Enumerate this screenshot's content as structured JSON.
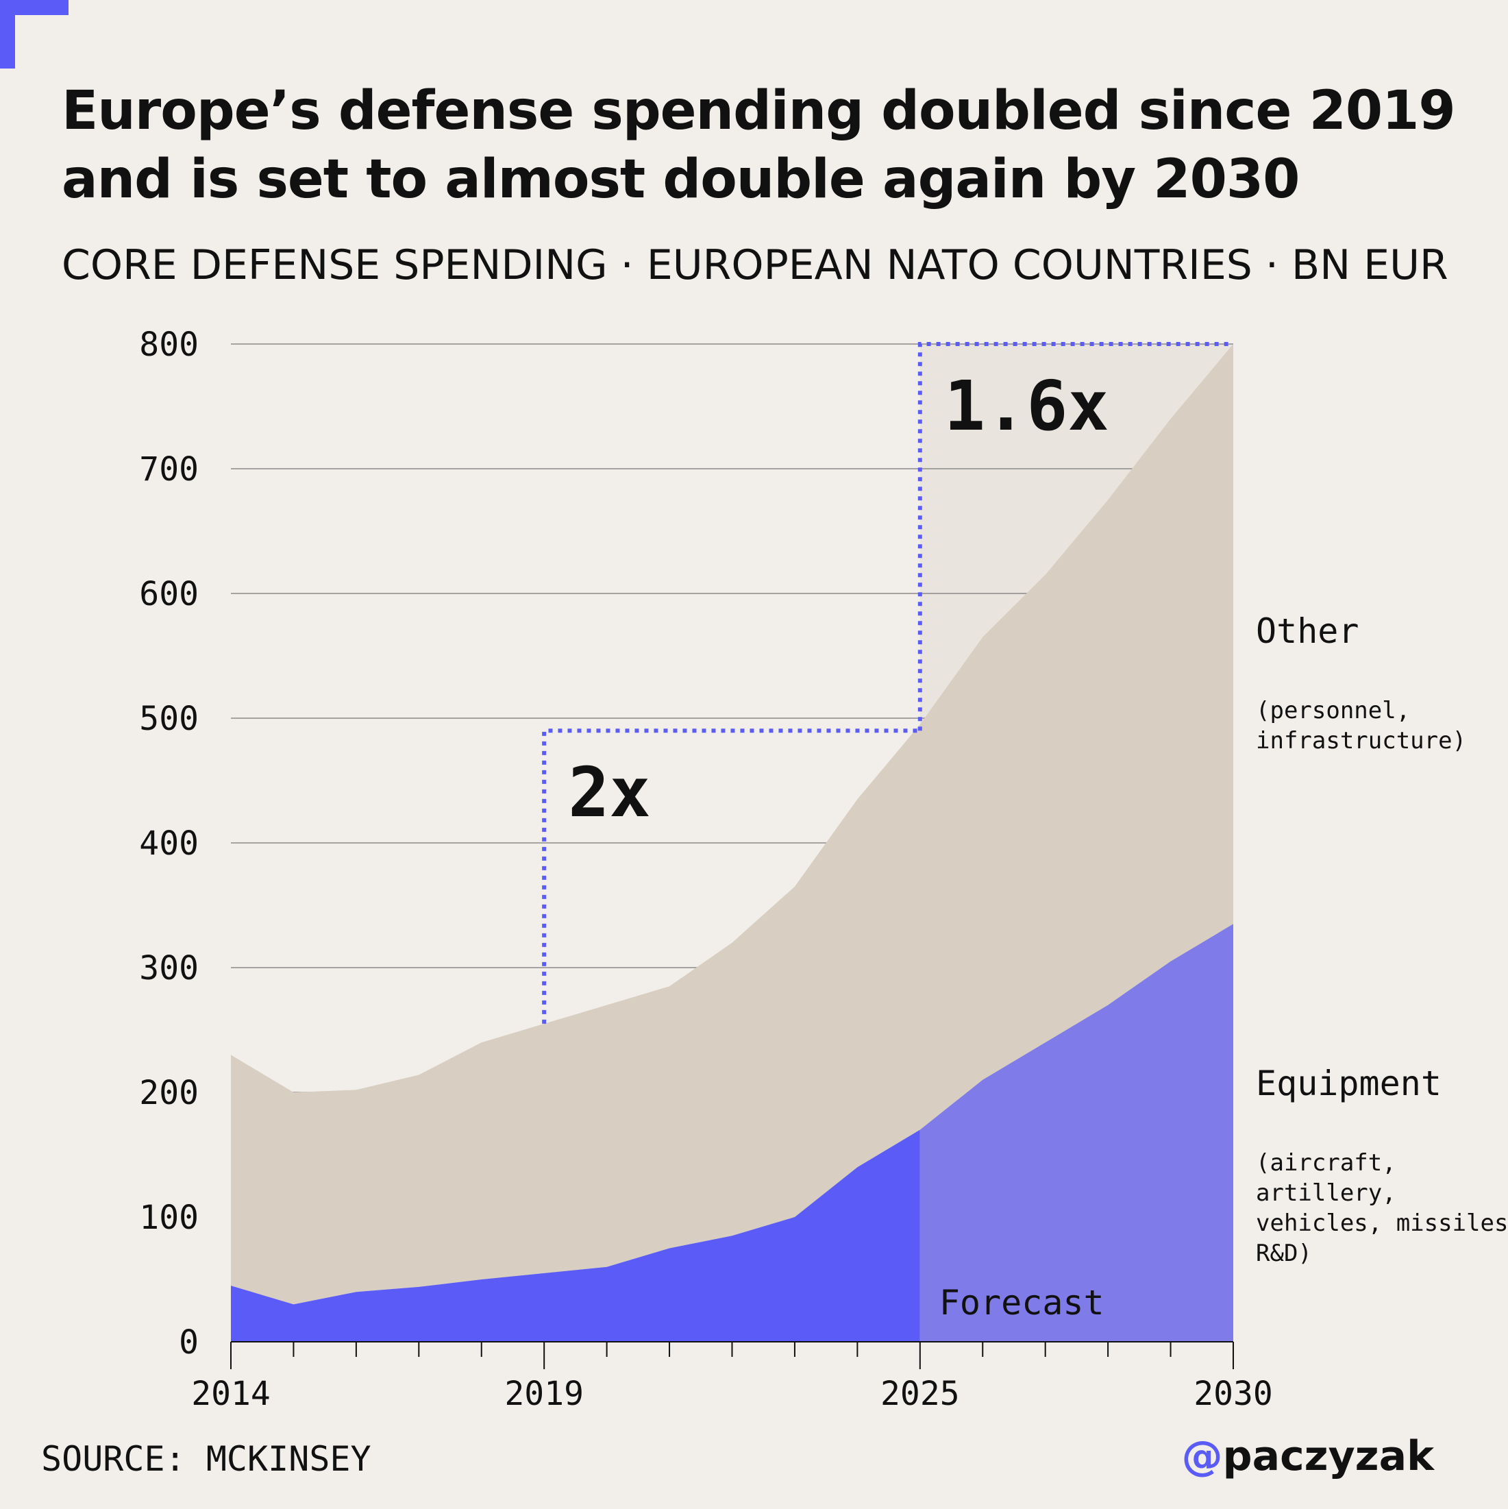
{
  "colors": {
    "background": "#f2efea",
    "accent": "#5b5bf7",
    "equipment": "#5b5bf7",
    "equipment_forecast": "#7f7be8",
    "other": "#d8cec2",
    "forecast_bg": "#e9e4de",
    "grid": "#8a8a8a",
    "text": "#111111"
  },
  "header": {
    "title": "Europe’s defense spending doubled since 2019 and is set to almost double again by 2030",
    "subtitle": "CORE DEFENSE SPENDING · EUROPEAN NATO COUNTRIES · BN EUR"
  },
  "footer": {
    "source": "SOURCE: MCKINSEY",
    "handle_at": "@",
    "handle_name": "paczyzak"
  },
  "chart_data": {
    "type": "area",
    "stacked": true,
    "x": [
      2014,
      2015,
      2016,
      2017,
      2018,
      2019,
      2020,
      2021,
      2022,
      2023,
      2024,
      2025,
      2026,
      2027,
      2028,
      2029,
      2030
    ],
    "series": [
      {
        "name": "Equipment",
        "detail": "(aircraft, artillery, vehicles, missiles, R&D)",
        "values": [
          45,
          30,
          40,
          44,
          50,
          55,
          60,
          75,
          85,
          100,
          140,
          170,
          210,
          240,
          270,
          305,
          335
        ]
      },
      {
        "name": "Other",
        "detail": "(personnel, infrastructure)",
        "values": [
          185,
          170,
          162,
          170,
          190,
          200,
          210,
          210,
          235,
          265,
          295,
          325,
          355,
          375,
          405,
          435,
          465
        ]
      }
    ],
    "ylim": [
      0,
      800
    ],
    "yticks": [
      "0",
      "100",
      "200",
      "300",
      "400",
      "500",
      "600",
      "700",
      "800"
    ],
    "xticks": [
      {
        "value": 2014,
        "label": "2014"
      },
      {
        "value": 2019,
        "label": "2019"
      },
      {
        "value": 2025,
        "label": "2025"
      },
      {
        "value": 2030,
        "label": "2030"
      }
    ],
    "grid": true,
    "forecast": {
      "start": 2025,
      "end": 2030,
      "label": "Forecast"
    },
    "annotations": [
      {
        "label": "2x",
        "x_start": 2019,
        "x_end": 2025,
        "y_start": 255,
        "y_end": 490
      },
      {
        "label": "1.6x",
        "x_start": 2025,
        "x_end": 2030,
        "y_start": 490,
        "y_end": 800
      }
    ]
  }
}
